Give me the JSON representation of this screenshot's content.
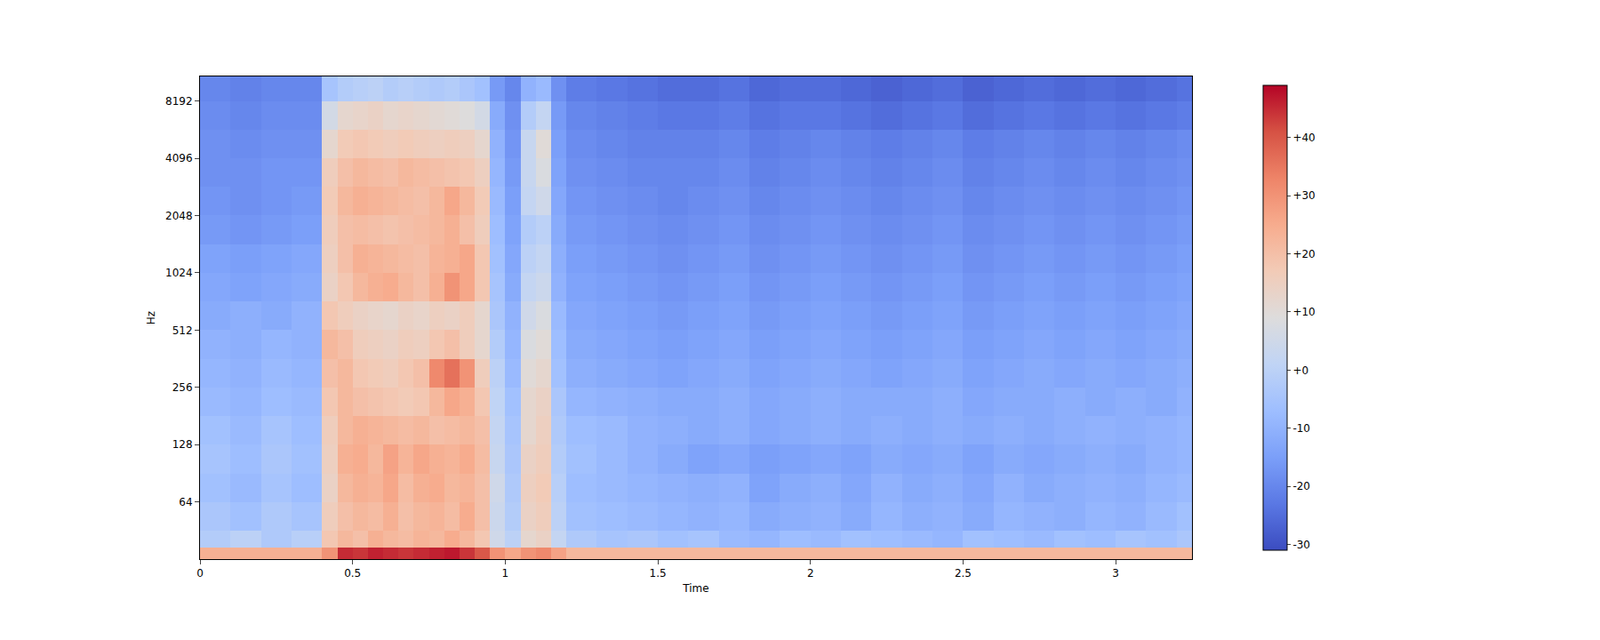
{
  "chart_data": {
    "type": "heatmap",
    "x_label": "Time",
    "y_label": "Hz",
    "log": "y",
    "grid": false,
    "xlim": [
      0,
      3.25
    ],
    "xticks": [
      0,
      0.5,
      1,
      1.5,
      2,
      2.5,
      3
    ],
    "ylim": [
      32,
      11025
    ],
    "yticks": [
      64,
      128,
      256,
      512,
      1024,
      2048,
      4096,
      8192
    ],
    "time_edges": [
      0,
      0.1,
      0.2,
      0.3,
      0.4,
      0.45,
      0.5,
      0.55,
      0.6,
      0.65,
      0.7,
      0.75,
      0.8,
      0.85,
      0.9,
      0.95,
      1.0,
      1.05,
      1.1,
      1.15,
      1.2,
      1.3,
      1.4,
      1.5,
      1.6,
      1.7,
      1.8,
      1.9,
      2.0,
      2.1,
      2.2,
      2.3,
      2.4,
      2.5,
      2.6,
      2.7,
      2.8,
      2.9,
      3.0,
      3.1,
      3.2,
      3.25
    ],
    "frequency_edges": [
      32,
      37,
      45,
      64,
      90,
      128,
      181,
      256,
      362,
      512,
      724,
      1024,
      1448,
      2048,
      2896,
      4096,
      5793,
      8192,
      11025
    ],
    "cells": [
      [
        24,
        24,
        24,
        24,
        30,
        45,
        44,
        46,
        45,
        44,
        45,
        46,
        47,
        44,
        40,
        30,
        26,
        30,
        32,
        27,
        22,
        22,
        22,
        22,
        22,
        22,
        22,
        22,
        22,
        22,
        22,
        22,
        22,
        22,
        22,
        22,
        22,
        22,
        22,
        22,
        22
      ],
      [
        -2,
        0,
        -3,
        -1,
        18,
        22,
        20,
        24,
        22,
        21,
        23,
        22,
        25,
        22,
        18,
        5,
        0,
        12,
        14,
        2,
        -3,
        -5,
        -4,
        -6,
        -5,
        -8,
        -9,
        -7,
        -8,
        -6,
        -7,
        -8,
        -9,
        -6,
        -7,
        -8,
        -6,
        -7,
        -5,
        -6,
        -4
      ],
      [
        -4,
        -6,
        -3,
        -5,
        16,
        20,
        22,
        21,
        24,
        20,
        22,
        23,
        21,
        25,
        20,
        4,
        -2,
        14,
        16,
        0,
        -6,
        -7,
        -8,
        -9,
        -10,
        -9,
        -12,
        -11,
        -10,
        -12,
        -9,
        -11,
        -10,
        -12,
        -9,
        -10,
        -11,
        -9,
        -10,
        -8,
        -6
      ],
      [
        -6,
        -8,
        -5,
        -7,
        14,
        22,
        24,
        23,
        26,
        21,
        24,
        25,
        22,
        23,
        20,
        5,
        -3,
        15,
        17,
        -1,
        -7,
        -8,
        -9,
        -10,
        -11,
        -10,
        -14,
        -12,
        -11,
        -13,
        -10,
        -12,
        -11,
        -13,
        -10,
        -12,
        -11,
        -10,
        -11,
        -9,
        -8
      ],
      [
        -5,
        -7,
        -4,
        -6,
        15,
        24,
        25,
        22,
        27,
        23,
        26,
        24,
        23,
        25,
        21,
        3,
        -4,
        14,
        16,
        -2,
        -6,
        -8,
        -10,
        -12,
        -14,
        -13,
        -15,
        -14,
        -13,
        -14,
        -12,
        -13,
        -12,
        -14,
        -12,
        -13,
        -12,
        -11,
        -12,
        -10,
        -9
      ],
      [
        -6,
        -8,
        -5,
        -7,
        16,
        22,
        24,
        23,
        22,
        21,
        22,
        20,
        21,
        22,
        20,
        2,
        -5,
        12,
        15,
        -3,
        -7,
        -8,
        -10,
        -11,
        -12,
        -11,
        -13,
        -12,
        -11,
        -12,
        -11,
        -12,
        -11,
        -12,
        -11,
        -12,
        -11,
        -10,
        -11,
        -10,
        -9
      ],
      [
        -8,
        -9,
        -7,
        -8,
        18,
        22,
        20,
        19,
        18,
        17,
        18,
        22,
        26,
        24,
        18,
        1,
        -6,
        12,
        14,
        -4,
        -9,
        -10,
        -11,
        -12,
        -12,
        -11,
        -13,
        -12,
        -11,
        -12,
        -12,
        -12,
        -11,
        -13,
        -12,
        -12,
        -11,
        -12,
        -11,
        -12,
        -10
      ],
      [
        -9,
        -10,
        -8,
        -9,
        20,
        22,
        18,
        17,
        16,
        18,
        20,
        32,
        36,
        30,
        16,
        0,
        -8,
        10,
        12,
        -6,
        -11,
        -12,
        -13,
        -14,
        -13,
        -12,
        -14,
        -13,
        -12,
        -13,
        -14,
        -13,
        -12,
        -14,
        -13,
        -12,
        -13,
        -12,
        -13,
        -12,
        -11
      ],
      [
        -10,
        -11,
        -9,
        -10,
        22,
        20,
        16,
        15,
        14,
        16,
        15,
        18,
        20,
        16,
        12,
        -2,
        -9,
        8,
        10,
        -7,
        -12,
        -13,
        -14,
        -15,
        -14,
        -13,
        -15,
        -14,
        -13,
        -14,
        -15,
        -14,
        -13,
        -15,
        -14,
        -13,
        -14,
        -13,
        -14,
        -13,
        -12
      ],
      [
        -12,
        -11,
        -12,
        -10,
        18,
        16,
        14,
        13,
        12,
        14,
        13,
        15,
        14,
        16,
        12,
        -4,
        -10,
        5,
        8,
        -8,
        -13,
        -14,
        -15,
        -16,
        -15,
        -14,
        -16,
        -15,
        -14,
        -15,
        -16,
        -15,
        -14,
        -16,
        -15,
        -14,
        -15,
        -14,
        -15,
        -14,
        -13
      ],
      [
        -13,
        -14,
        -13,
        -12,
        14,
        18,
        22,
        24,
        25,
        22,
        20,
        24,
        30,
        26,
        18,
        -5,
        -12,
        2,
        4,
        -10,
        -14,
        -15,
        -16,
        -17,
        -16,
        -15,
        -17,
        -16,
        -15,
        -16,
        -17,
        -16,
        -15,
        -17,
        -16,
        -15,
        -16,
        -15,
        -16,
        -15,
        -14
      ],
      [
        -14,
        -15,
        -14,
        -13,
        15,
        20,
        24,
        23,
        22,
        21,
        20,
        23,
        24,
        26,
        18,
        -6,
        -13,
        0,
        2,
        -11,
        -15,
        -16,
        -17,
        -18,
        -17,
        -16,
        -18,
        -17,
        -16,
        -17,
        -18,
        -17,
        -16,
        -18,
        -17,
        -16,
        -17,
        -16,
        -17,
        -16,
        -15
      ],
      [
        -16,
        -17,
        -16,
        -15,
        16,
        20,
        21,
        20,
        19,
        20,
        21,
        22,
        24,
        20,
        16,
        -7,
        -14,
        -2,
        0,
        -12,
        -16,
        -17,
        -18,
        -19,
        -18,
        -17,
        -19,
        -18,
        -17,
        -18,
        -19,
        -18,
        -17,
        -19,
        -18,
        -17,
        -18,
        -17,
        -18,
        -17,
        -16
      ],
      [
        -17,
        -18,
        -17,
        -16,
        17,
        22,
        24,
        23,
        22,
        21,
        20,
        22,
        26,
        22,
        17,
        -8,
        -15,
        2,
        5,
        -13,
        -17,
        -18,
        -19,
        -20,
        -19,
        -18,
        -20,
        -19,
        -18,
        -19,
        -20,
        -19,
        -18,
        -20,
        -19,
        -18,
        -19,
        -18,
        -19,
        -18,
        -17
      ],
      [
        -18,
        -18,
        -17,
        -17,
        16,
        20,
        22,
        21,
        20,
        22,
        21,
        20,
        19,
        18,
        15,
        -9,
        -16,
        3,
        8,
        -14,
        -18,
        -19,
        -20,
        -20,
        -20,
        -19,
        -21,
        -20,
        -19,
        -20,
        -21,
        -20,
        -19,
        -21,
        -20,
        -19,
        -20,
        -19,
        -20,
        -19,
        -18
      ],
      [
        -18,
        -19,
        -18,
        -18,
        12,
        17,
        18,
        17,
        16,
        17,
        16,
        15,
        16,
        15,
        12,
        -10,
        -17,
        3,
        10,
        -15,
        -19,
        -20,
        -21,
        -21,
        -21,
        -20,
        -22,
        -21,
        -20,
        -21,
        -22,
        -21,
        -20,
        -22,
        -21,
        -20,
        -21,
        -20,
        -21,
        -20,
        -19
      ],
      [
        -19,
        -20,
        -19,
        -19,
        6,
        12,
        13,
        14,
        12,
        13,
        12,
        11,
        10,
        9,
        6,
        -12,
        -18,
        -2,
        2,
        -16,
        -20,
        -21,
        -22,
        -23,
        -23,
        -22,
        -24,
        -23,
        -23,
        -24,
        -25,
        -24,
        -23,
        -25,
        -24,
        -23,
        -24,
        -23,
        -24,
        -23,
        -22
      ],
      [
        -20,
        -21,
        -20,
        -20,
        -5,
        -2,
        -1,
        0,
        -2,
        -1,
        -2,
        -3,
        -2,
        -4,
        -6,
        -16,
        -20,
        -10,
        -8,
        -18,
        -22,
        -23,
        -24,
        -25,
        -25,
        -24,
        -26,
        -25,
        -25,
        -26,
        -27,
        -26,
        -25,
        -27,
        -26,
        -25,
        -26,
        -25,
        -26,
        -25,
        -24
      ]
    ],
    "colorbar": {
      "zlim": [
        -31,
        49
      ],
      "ticks": [
        -30,
        -20,
        -10,
        {
          "value": 0,
          "label": "+0"
        },
        {
          "value": 10,
          "label": "+10"
        },
        {
          "value": 20,
          "label": "+20"
        },
        {
          "value": 30,
          "label": "+30"
        },
        {
          "value": 40,
          "label": "+40"
        }
      ]
    }
  }
}
